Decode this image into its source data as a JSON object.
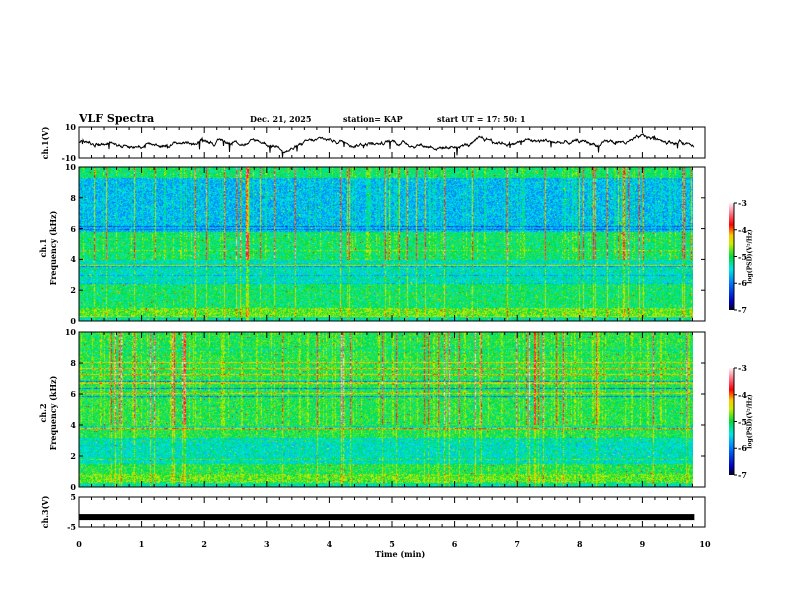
{
  "header": {
    "title": "VLF Spectra",
    "date": "Dec. 21, 2025",
    "station": "station= KAP",
    "start": "start  UT =   17: 50: 1"
  },
  "chart_data": [
    {
      "type": "line",
      "name": "ch1-waveform",
      "ylabel": "ch.1(V)",
      "ylim": [
        -10,
        10
      ],
      "ytick_labels": [
        "10",
        "-10"
      ],
      "xlim": [
        0,
        10
      ],
      "data_end_min": 9.83
    },
    {
      "type": "heatmap",
      "name": "ch1-spectrogram",
      "ylabel": "ch.1\nFrequency  (kHz)",
      "ylabel_line1": "ch.1",
      "ylabel_line2": "Frequency  (kHz)",
      "ylim": [
        0,
        10
      ],
      "ytick_labels": [
        "10",
        "8",
        "6",
        "4",
        "2",
        "0"
      ],
      "colorbar": {
        "label": "log(PSD)(V²/Hz)",
        "range": [
          -7,
          -3
        ],
        "tick_labels": [
          "-3",
          "-4",
          "-5",
          "-6",
          "-7"
        ]
      }
    },
    {
      "type": "heatmap",
      "name": "ch2-spectrogram",
      "ylabel_line1": "ch.2",
      "ylabel_line2": "Frequency  (kHz)",
      "ylim": [
        0,
        10
      ],
      "ytick_labels": [
        "10",
        "8",
        "6",
        "4",
        "2",
        "0"
      ],
      "colorbar": {
        "label": "log(PSD)(V²/Hz)",
        "range": [
          -7,
          -3
        ],
        "tick_labels": [
          "-3",
          "-4",
          "-5",
          "-6",
          "-7"
        ]
      }
    },
    {
      "type": "line",
      "name": "ch3-waveform",
      "ylabel": "ch.3(V)",
      "ylim": [
        -5,
        5
      ],
      "ytick_labels": [
        "5",
        "-5"
      ],
      "constant_value": -1.7
    }
  ],
  "xaxis": {
    "label": "Time  (min)",
    "tick_labels": [
      "0",
      "1",
      "2",
      "3",
      "4",
      "5",
      "6",
      "7",
      "8",
      "9",
      "10"
    ]
  }
}
